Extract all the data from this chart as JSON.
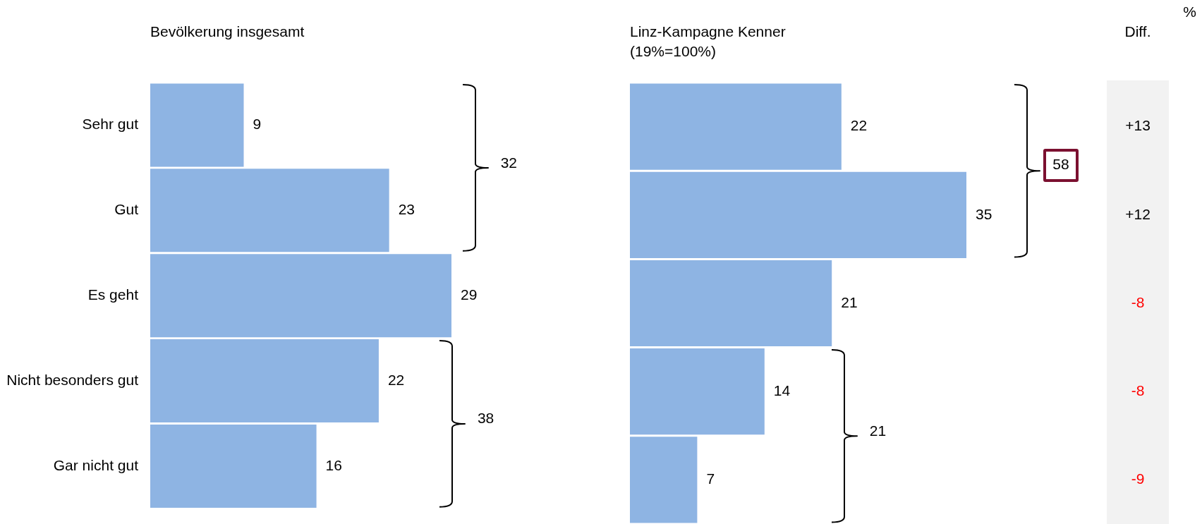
{
  "chart_data": [
    {
      "type": "bar",
      "title": "Bevölkerung insgesamt",
      "categories": [
        "Sehr gut",
        "Gut",
        "Es geht",
        "Nicht besonders gut",
        "Gar nicht gut"
      ],
      "values": [
        9,
        23,
        29,
        22,
        16
      ],
      "color": "#8eb4e3",
      "orientation": "horizontal",
      "data_labels": true,
      "tick_labels": "y",
      "annotations": [
        "32",
        "38"
      ]
    },
    {
      "type": "bar",
      "title": "Linz-Kampagne Kenner",
      "subtitle": "(19%=100%)",
      "categories": [
        null,
        null,
        null,
        null,
        null
      ],
      "values": [
        22,
        35,
        21,
        14,
        7
      ],
      "color": "#8eb4e3",
      "orientation": "horizontal",
      "data_labels": true,
      "tick_labels": false,
      "annotations": [
        "58",
        "21"
      ]
    },
    {
      "type": "other",
      "title": "Diff.",
      "values": [
        13,
        12,
        -8,
        -8,
        -9
      ],
      "value_labels": [
        "+13",
        "+12",
        "-8",
        "-8",
        "-9"
      ],
      "colors": [
        "#000000",
        "#000000",
        "#ff0000",
        "#ff0000",
        "#ff0000"
      ],
      "annotations": [
        "%"
      ]
    }
  ]
}
